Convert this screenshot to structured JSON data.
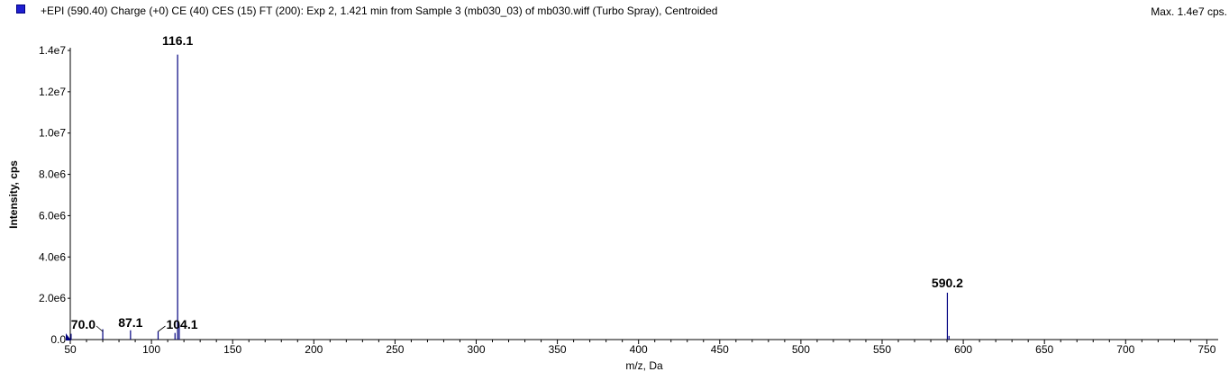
{
  "header": {
    "title": "+EPI (590.40) Charge (+0) CE (40) CES (15) FT (200): Exp 2, 1.421 min from Sample 3 (mb030_03) of mb030.wiff (Turbo Spray), Centroided",
    "max_label": "Max. 1.4e7 cps."
  },
  "colors": {
    "series": "#00007f",
    "legend": "#1f1fd1",
    "axis": "#000000"
  },
  "chart_data": {
    "type": "bar",
    "title": "+EPI (590.40) Charge (+0) CE (40) CES (15) FT (200): Exp 2, 1.421 min from Sample 3 (mb030_03) of mb030.wiff (Turbo Spray), Centroided",
    "xlabel": "m/z, Da",
    "ylabel": "Intensity, cps",
    "xlim": [
      50,
      757
    ],
    "ylim": [
      0,
      14000000
    ],
    "grid": false,
    "x_ticks": [
      50,
      100,
      150,
      200,
      250,
      300,
      350,
      400,
      450,
      500,
      550,
      600,
      650,
      700,
      750
    ],
    "x_tick_labels": [
      "50",
      "100",
      "150",
      "200",
      "250",
      "300",
      "350",
      "400",
      "450",
      "500",
      "550",
      "600",
      "650",
      "700",
      "750"
    ],
    "y_ticks": [
      0,
      2000000,
      4000000,
      6000000,
      8000000,
      10000000,
      12000000,
      14000000
    ],
    "y_tick_labels": [
      "0.0",
      "2.0e6",
      "4.0e6",
      "6.0e6",
      "8.0e6",
      "1.0e7",
      "1.2e7",
      "1.4e7"
    ],
    "peaks": [
      {
        "mz": 50.5,
        "intensity": 280000
      },
      {
        "mz": 70.0,
        "intensity": 500000
      },
      {
        "mz": 87.1,
        "intensity": 450000
      },
      {
        "mz": 104.1,
        "intensity": 400000
      },
      {
        "mz": 114.5,
        "intensity": 320000
      },
      {
        "mz": 116.1,
        "intensity": 13800000
      },
      {
        "mz": 117.1,
        "intensity": 700000
      },
      {
        "mz": 590.2,
        "intensity": 2270000
      },
      {
        "mz": 591.2,
        "intensity": 180000
      }
    ],
    "peak_labels": [
      {
        "mz": 70.0,
        "text": "70.0"
      },
      {
        "mz": 87.1,
        "text": "87.1"
      },
      {
        "mz": 104.1,
        "text": "104.1"
      },
      {
        "mz": 116.1,
        "text": "116.1"
      },
      {
        "mz": 590.2,
        "text": "590.2"
      }
    ]
  }
}
